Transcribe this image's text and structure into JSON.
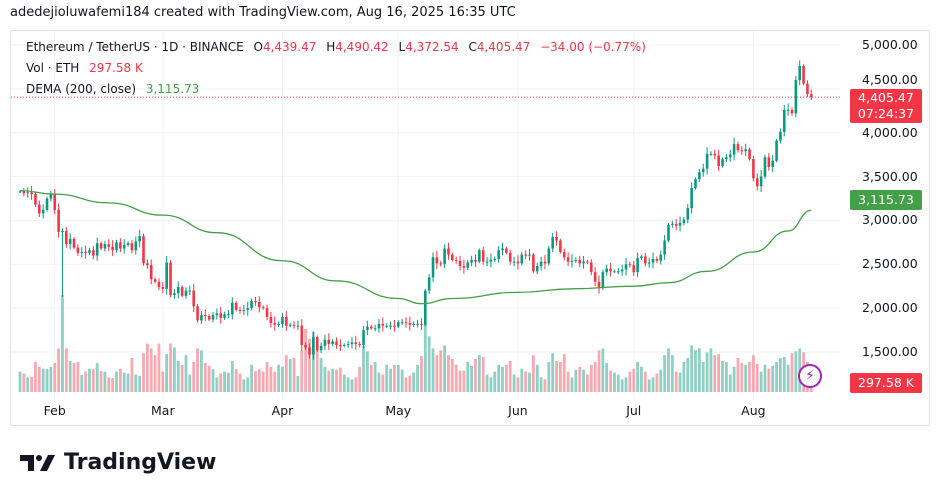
{
  "caption": "adedejioluwafemi184 created with TradingView.com, Aug 16, 2025 16:35 UTC",
  "legend": {
    "symbol": "Ethereum / TetherUS · 1D · BINANCE",
    "o_label": "O",
    "o": "4,439.47",
    "h_label": "H",
    "h": "4,490.42",
    "l_label": "L",
    "l": "4,372.54",
    "c_label": "C",
    "c": "4,405.47",
    "change": "−34.00 (−0.77%)",
    "vol_label": "Vol · ETH",
    "vol": "297.58 K",
    "dema_label": "DEMA (200, close)",
    "dema": "3,115.73"
  },
  "price_tag": {
    "price": "4,405.47",
    "countdown": "07:24:37"
  },
  "dema_tag": "3,115.73",
  "vol_tag": "297.58 K",
  "brand": "TradingView",
  "colors": {
    "up": "#089981",
    "down": "#f23645",
    "dema": "#43a047",
    "up_vol": "#8fcfc4",
    "down_vol": "#f6a9b0"
  },
  "chart_data": {
    "type": "candlestick",
    "year": 2025,
    "ylim": [
      1350,
      5100
    ],
    "y_ticks": [
      "5,000.00",
      "4,500.00",
      "4,000.00",
      "3,500.00",
      "3,000.00",
      "2,500.00",
      "2,000.00",
      "1,500.00"
    ],
    "y_tick_values": [
      5000,
      4500,
      4000,
      3500,
      3000,
      2500,
      2000,
      1500
    ],
    "x_ticks": [
      {
        "label": "Feb",
        "date": "02-01"
      },
      {
        "label": "Mar",
        "date": "03-01"
      },
      {
        "label": "Apr",
        "date": "04-01"
      },
      {
        "label": "May",
        "date": "05-01"
      },
      {
        "label": "Jun",
        "date": "06-01"
      },
      {
        "label": "Jul",
        "date": "07-01"
      },
      {
        "label": "Aug",
        "date": "08-01"
      }
    ],
    "last_candle": {
      "open": 4439.47,
      "high": 4490.42,
      "low": 4372.54,
      "close": 4405.47,
      "volume_k": 297.58
    },
    "candle_fields": [
      "date",
      "close",
      "volume_k",
      "low"
    ],
    "candles": [
      [
        "01-23",
        3330,
        420
      ],
      [
        "01-24",
        3310,
        380
      ],
      [
        "01-25",
        3320,
        300
      ],
      [
        "01-26",
        3300,
        310
      ],
      [
        "01-27",
        3180,
        620
      ],
      [
        "01-28",
        3080,
        520
      ],
      [
        "01-29",
        3120,
        480
      ],
      [
        "01-30",
        3250,
        470
      ],
      [
        "01-31",
        3300,
        520
      ],
      [
        "02-01",
        3120,
        600
      ],
      [
        "02-02",
        2870,
        900
      ],
      [
        "02-03",
        2880,
        2000,
        2130
      ],
      [
        "02-04",
        2730,
        900
      ],
      [
        "02-05",
        2790,
        640
      ],
      [
        "02-06",
        2690,
        600
      ],
      [
        "02-07",
        2630,
        620
      ],
      [
        "02-08",
        2640,
        350
      ],
      [
        "02-09",
        2630,
        420
      ],
      [
        "02-10",
        2660,
        480
      ],
      [
        "02-11",
        2600,
        470
      ],
      [
        "02-12",
        2740,
        600
      ],
      [
        "02-13",
        2680,
        430
      ],
      [
        "02-14",
        2730,
        420
      ],
      [
        "02-15",
        2700,
        300
      ],
      [
        "02-16",
        2660,
        290
      ],
      [
        "02-17",
        2750,
        420
      ],
      [
        "02-18",
        2680,
        480
      ],
      [
        "02-19",
        2720,
        400
      ],
      [
        "02-20",
        2740,
        380
      ],
      [
        "02-21",
        2660,
        700
      ],
      [
        "02-22",
        2760,
        360
      ],
      [
        "02-23",
        2820,
        330
      ],
      [
        "02-24",
        2510,
        800
      ],
      [
        "02-25",
        2490,
        1000
      ],
      [
        "02-26",
        2330,
        900
      ],
      [
        "02-27",
        2300,
        760
      ],
      [
        "02-28",
        2240,
        1000
      ],
      [
        "03-01",
        2220,
        420
      ],
      [
        "03-02",
        2520,
        780
      ],
      [
        "03-03",
        2150,
        1000
      ],
      [
        "03-04",
        2170,
        920
      ],
      [
        "03-05",
        2240,
        640
      ],
      [
        "03-06",
        2140,
        560
      ],
      [
        "03-07",
        2200,
        760
      ],
      [
        "03-08",
        2200,
        360
      ],
      [
        "03-09",
        2020,
        620
      ],
      [
        "03-10",
        1860,
        900
      ],
      [
        "03-11",
        1920,
        860
      ],
      [
        "03-12",
        1910,
        600
      ],
      [
        "03-13",
        1870,
        540
      ],
      [
        "03-14",
        1920,
        470
      ],
      [
        "03-15",
        1940,
        300
      ],
      [
        "03-16",
        1890,
        380
      ],
      [
        "03-17",
        1930,
        420
      ],
      [
        "03-18",
        1930,
        400
      ],
      [
        "03-19",
        2060,
        640
      ],
      [
        "03-20",
        1980,
        470
      ],
      [
        "03-21",
        1970,
        380
      ],
      [
        "03-22",
        1980,
        260
      ],
      [
        "03-23",
        2000,
        300
      ],
      [
        "03-24",
        2080,
        560
      ],
      [
        "03-25",
        2070,
        430
      ],
      [
        "03-26",
        2010,
        470
      ],
      [
        "03-27",
        2000,
        420
      ],
      [
        "03-28",
        1900,
        620
      ],
      [
        "03-29",
        1830,
        520
      ],
      [
        "03-30",
        1810,
        420
      ],
      [
        "03-31",
        1820,
        560
      ],
      [
        "04-01",
        1900,
        520
      ],
      [
        "04-02",
        1800,
        760
      ],
      [
        "04-03",
        1810,
        680
      ],
      [
        "04-04",
        1800,
        700
      ],
      [
        "04-05",
        1800,
        330
      ],
      [
        "04-06",
        1580,
        860
      ],
      [
        "04-07",
        1550,
        1300
      ],
      [
        "04-08",
        1470,
        1100
      ],
      [
        "04-09",
        1670,
        1240
      ],
      [
        "04-10",
        1520,
        960
      ],
      [
        "04-11",
        1570,
        700
      ],
      [
        "04-12",
        1640,
        520
      ],
      [
        "04-13",
        1590,
        440
      ],
      [
        "04-14",
        1620,
        480
      ],
      [
        "04-15",
        1580,
        460
      ],
      [
        "04-16",
        1570,
        500
      ],
      [
        "04-17",
        1580,
        360
      ],
      [
        "04-18",
        1590,
        300
      ],
      [
        "04-19",
        1610,
        260
      ],
      [
        "04-20",
        1590,
        300
      ],
      [
        "04-21",
        1580,
        520
      ],
      [
        "04-22",
        1750,
        960
      ],
      [
        "04-23",
        1790,
        840
      ],
      [
        "04-24",
        1770,
        560
      ],
      [
        "04-25",
        1770,
        620
      ],
      [
        "04-26",
        1820,
        400
      ],
      [
        "04-27",
        1800,
        360
      ],
      [
        "04-28",
        1800,
        560
      ],
      [
        "04-29",
        1800,
        480
      ],
      [
        "04-30",
        1790,
        560
      ],
      [
        "05-01",
        1840,
        560
      ],
      [
        "05-02",
        1840,
        460
      ],
      [
        "05-03",
        1830,
        300
      ],
      [
        "05-04",
        1810,
        340
      ],
      [
        "05-05",
        1820,
        400
      ],
      [
        "05-06",
        1820,
        560
      ],
      [
        "05-07",
        1810,
        740
      ],
      [
        "05-08",
        2200,
        1400
      ],
      [
        "05-09",
        2350,
        1150
      ],
      [
        "05-10",
        2580,
        900
      ],
      [
        "05-11",
        2510,
        760
      ],
      [
        "05-12",
        2500,
        860
      ],
      [
        "05-13",
        2680,
        960
      ],
      [
        "05-14",
        2610,
        760
      ],
      [
        "05-15",
        2550,
        680
      ],
      [
        "05-16",
        2540,
        560
      ],
      [
        "05-17",
        2480,
        440
      ],
      [
        "05-18",
        2460,
        440
      ],
      [
        "05-19",
        2520,
        620
      ],
      [
        "05-20",
        2550,
        540
      ],
      [
        "05-21",
        2530,
        680
      ],
      [
        "05-22",
        2660,
        760
      ],
      [
        "05-23",
        2530,
        720
      ],
      [
        "05-24",
        2530,
        360
      ],
      [
        "05-25",
        2550,
        300
      ],
      [
        "05-26",
        2560,
        420
      ],
      [
        "05-27",
        2660,
        560
      ],
      [
        "05-28",
        2680,
        520
      ],
      [
        "05-29",
        2630,
        560
      ],
      [
        "05-30",
        2530,
        640
      ],
      [
        "05-31",
        2530,
        360
      ],
      [
        "06-01",
        2510,
        300
      ],
      [
        "06-02",
        2610,
        480
      ],
      [
        "06-03",
        2600,
        420
      ],
      [
        "06-04",
        2610,
        400
      ],
      [
        "06-05",
        2420,
        760
      ],
      [
        "06-06",
        2480,
        560
      ],
      [
        "06-07",
        2530,
        300
      ],
      [
        "06-08",
        2510,
        260
      ],
      [
        "06-09",
        2680,
        620
      ],
      [
        "06-10",
        2810,
        800
      ],
      [
        "06-11",
        2770,
        640
      ],
      [
        "06-12",
        2640,
        620
      ],
      [
        "06-13",
        2580,
        780
      ],
      [
        "06-14",
        2530,
        420
      ],
      [
        "06-15",
        2540,
        300
      ],
      [
        "06-16",
        2550,
        460
      ],
      [
        "06-17",
        2510,
        520
      ],
      [
        "06-18",
        2530,
        460
      ],
      [
        "06-19",
        2520,
        360
      ],
      [
        "06-20",
        2410,
        560
      ],
      [
        "06-21",
        2300,
        620
      ],
      [
        "06-22",
        2230,
        860
      ],
      [
        "06-23",
        2410,
        900
      ],
      [
        "06-24",
        2450,
        600
      ],
      [
        "06-25",
        2420,
        440
      ],
      [
        "06-26",
        2420,
        400
      ],
      [
        "06-27",
        2420,
        360
      ],
      [
        "06-28",
        2440,
        260
      ],
      [
        "06-29",
        2500,
        300
      ],
      [
        "06-30",
        2490,
        420
      ],
      [
        "07-01",
        2410,
        480
      ],
      [
        "07-02",
        2570,
        620
      ],
      [
        "07-03",
        2590,
        520
      ],
      [
        "07-04",
        2510,
        420
      ],
      [
        "07-05",
        2520,
        260
      ],
      [
        "07-06",
        2560,
        300
      ],
      [
        "07-07",
        2540,
        380
      ],
      [
        "07-08",
        2610,
        460
      ],
      [
        "07-09",
        2770,
        760
      ],
      [
        "07-10",
        2950,
        900
      ],
      [
        "07-11",
        2960,
        760
      ],
      [
        "07-12",
        2940,
        420
      ],
      [
        "07-13",
        2970,
        400
      ],
      [
        "07-14",
        3010,
        620
      ],
      [
        "07-15",
        3140,
        700
      ],
      [
        "07-16",
        3370,
        960
      ],
      [
        "07-17",
        3470,
        860
      ],
      [
        "07-18",
        3550,
        900
      ],
      [
        "07-19",
        3590,
        620
      ],
      [
        "07-20",
        3760,
        820
      ],
      [
        "07-21",
        3760,
        900
      ],
      [
        "07-22",
        3740,
        760
      ],
      [
        "07-23",
        3620,
        780
      ],
      [
        "07-24",
        3700,
        640
      ],
      [
        "07-25",
        3720,
        620
      ],
      [
        "07-26",
        3750,
        360
      ],
      [
        "07-27",
        3870,
        520
      ],
      [
        "07-28",
        3800,
        700
      ],
      [
        "07-29",
        3790,
        600
      ],
      [
        "07-30",
        3810,
        560
      ],
      [
        "07-31",
        3700,
        620
      ],
      [
        "08-01",
        3480,
        760
      ],
      [
        "08-02",
        3390,
        580
      ],
      [
        "08-03",
        3500,
        420
      ],
      [
        "08-04",
        3720,
        560
      ],
      [
        "08-05",
        3610,
        480
      ],
      [
        "08-06",
        3680,
        540
      ],
      [
        "08-07",
        3910,
        620
      ],
      [
        "08-08",
        4010,
        700
      ],
      [
        "08-09",
        4260,
        720
      ],
      [
        "08-10",
        4260,
        560
      ],
      [
        "08-11",
        4220,
        800
      ],
      [
        "08-12",
        4600,
        840
      ],
      [
        "08-13",
        4760,
        900
      ],
      [
        "08-14",
        4560,
        820
      ],
      [
        "08-15",
        4440,
        620
      ],
      [
        "08-16",
        4405.47,
        297.58
      ]
    ],
    "dema_series": {
      "name": "DEMA (200, close)",
      "points": [
        [
          "01-23",
          3340
        ],
        [
          "02-01",
          3300
        ],
        [
          "02-15",
          3200
        ],
        [
          "03-01",
          3060
        ],
        [
          "03-15",
          2860
        ],
        [
          "04-01",
          2540
        ],
        [
          "04-15",
          2310
        ],
        [
          "05-01",
          2110
        ],
        [
          "05-07",
          2050
        ],
        [
          "05-15",
          2110
        ],
        [
          "06-01",
          2180
        ],
        [
          "06-15",
          2220
        ],
        [
          "07-01",
          2250
        ],
        [
          "07-10",
          2290
        ],
        [
          "07-20",
          2420
        ],
        [
          "08-01",
          2640
        ],
        [
          "08-10",
          2880
        ],
        [
          "08-16",
          3115.73
        ]
      ]
    }
  }
}
